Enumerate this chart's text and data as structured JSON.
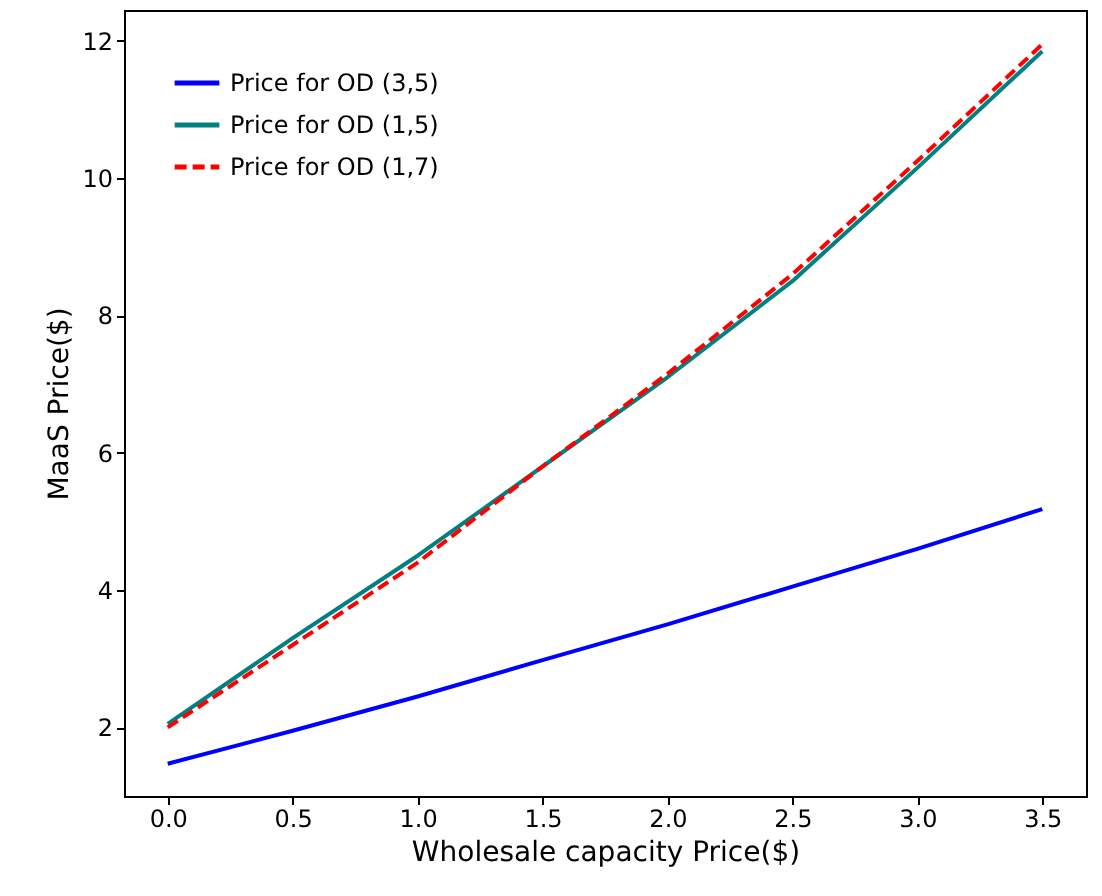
{
  "chart_data": {
    "type": "line",
    "xlabel": "Wholesale capacity Price($)",
    "ylabel": "MaaS Price($)",
    "x": [
      0,
      0.5,
      1,
      1.5,
      2,
      2.5,
      3,
      3.5
    ],
    "series": [
      {
        "name": "Price for OD (3,5)",
        "color": "#0000ff",
        "line_style": "solid",
        "values": [
          1.47,
          1.95,
          2.45,
          2.98,
          3.5,
          4.05,
          4.6,
          5.18
        ]
      },
      {
        "name": "Price for OD (1,5)",
        "color": "#008080",
        "line_style": "solid",
        "values": [
          2.05,
          3.3,
          4.5,
          5.8,
          7.1,
          8.5,
          10.15,
          11.85
        ]
      },
      {
        "name": "Price for OD (1,7)",
        "color": "#ff0000",
        "line_style": "dashed",
        "values": [
          2.0,
          3.2,
          4.4,
          5.8,
          7.15,
          8.6,
          10.25,
          11.95
        ]
      }
    ],
    "xlim": [
      -0.175,
      3.675
    ],
    "ylim": [
      1.0,
      12.45
    ],
    "xticks": [
      {
        "value": 0,
        "label": "0.0"
      },
      0.5,
      {
        "value": 1,
        "label": "1.0"
      },
      1.5,
      {
        "value": 2,
        "label": "2.0"
      },
      2.5,
      {
        "value": 3,
        "label": "3.0"
      },
      3.5
    ],
    "yticks": [
      2,
      4,
      6,
      8,
      10,
      12
    ],
    "legend": "top left",
    "grid": false,
    "marker": "none"
  }
}
